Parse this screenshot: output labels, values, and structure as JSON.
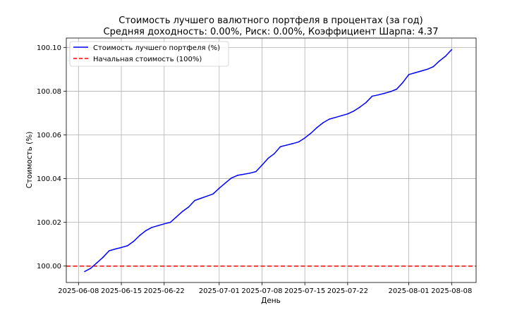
{
  "chart_data": {
    "type": "line",
    "title": "Стоимость лучшего валютного портфеля в процентах (за год)",
    "subtitle": "Средняя доходность: 0.00%, Риск: 0.00%, Коэффициент Шарпа: 4.37",
    "xlabel": "День",
    "ylabel": "Стоимость (%)",
    "grid": true,
    "legend_position": "top-left",
    "xlim": [
      "2025-06-06",
      "2025-08-12"
    ],
    "ylim": [
      99.9925,
      100.1043
    ],
    "x_ticks": [
      "2025-06-08",
      "2025-06-15",
      "2025-06-22",
      "2025-07-01",
      "2025-07-08",
      "2025-07-15",
      "2025-07-22",
      "2025-08-01",
      "2025-08-08"
    ],
    "y_ticks": [
      "100.00",
      "100.02",
      "100.04",
      "100.06",
      "100.08",
      "100.10"
    ],
    "series": [
      {
        "name": "Стоимость лучшего портфеля (%)",
        "color": "#0000ff",
        "style": "solid",
        "x": [
          "2025-06-09",
          "2025-06-10",
          "2025-06-11",
          "2025-06-12",
          "2025-06-13",
          "2025-06-14",
          "2025-06-15",
          "2025-06-16",
          "2025-06-17",
          "2025-06-18",
          "2025-06-19",
          "2025-06-20",
          "2025-06-21",
          "2025-06-22",
          "2025-06-23",
          "2025-06-24",
          "2025-06-25",
          "2025-06-26",
          "2025-06-27",
          "2025-06-28",
          "2025-06-29",
          "2025-06-30",
          "2025-07-01",
          "2025-07-02",
          "2025-07-03",
          "2025-07-04",
          "2025-07-05",
          "2025-07-06",
          "2025-07-07",
          "2025-07-08",
          "2025-07-09",
          "2025-07-10",
          "2025-07-11",
          "2025-07-12",
          "2025-07-13",
          "2025-07-14",
          "2025-07-15",
          "2025-07-16",
          "2025-07-17",
          "2025-07-18",
          "2025-07-19",
          "2025-07-20",
          "2025-07-21",
          "2025-07-22",
          "2025-07-23",
          "2025-07-24",
          "2025-07-25",
          "2025-07-26",
          "2025-07-27",
          "2025-07-28",
          "2025-07-29",
          "2025-07-30",
          "2025-07-31",
          "2025-08-01",
          "2025-08-02",
          "2025-08-03",
          "2025-08-04",
          "2025-08-05",
          "2025-08-06",
          "2025-08-07",
          "2025-08-08"
        ],
        "values": [
          99.9975,
          99.999,
          100.0015,
          100.004,
          100.007,
          100.0078,
          100.0085,
          100.0093,
          100.0113,
          100.014,
          100.0162,
          100.0177,
          100.0185,
          100.0193,
          100.02,
          100.0225,
          100.025,
          100.027,
          100.03,
          100.031,
          100.032,
          100.033,
          100.0356,
          100.038,
          100.0403,
          100.0415,
          100.042,
          100.0425,
          100.0432,
          100.0462,
          100.0493,
          100.0514,
          100.0546,
          100.0553,
          100.056,
          100.0568,
          100.0586,
          100.0608,
          100.0634,
          100.0656,
          100.0672,
          100.068,
          100.0688,
          100.0696,
          100.0709,
          100.0727,
          100.0748,
          100.0777,
          100.0783,
          100.079,
          100.0798,
          100.0809,
          100.0839,
          100.0876,
          100.0884,
          100.0892,
          100.09,
          100.0912,
          100.0938,
          100.096,
          100.099
        ]
      },
      {
        "name": "Начальная стоимость (100%)",
        "color": "#ff0000",
        "style": "dashed",
        "y": 100.0
      }
    ]
  }
}
